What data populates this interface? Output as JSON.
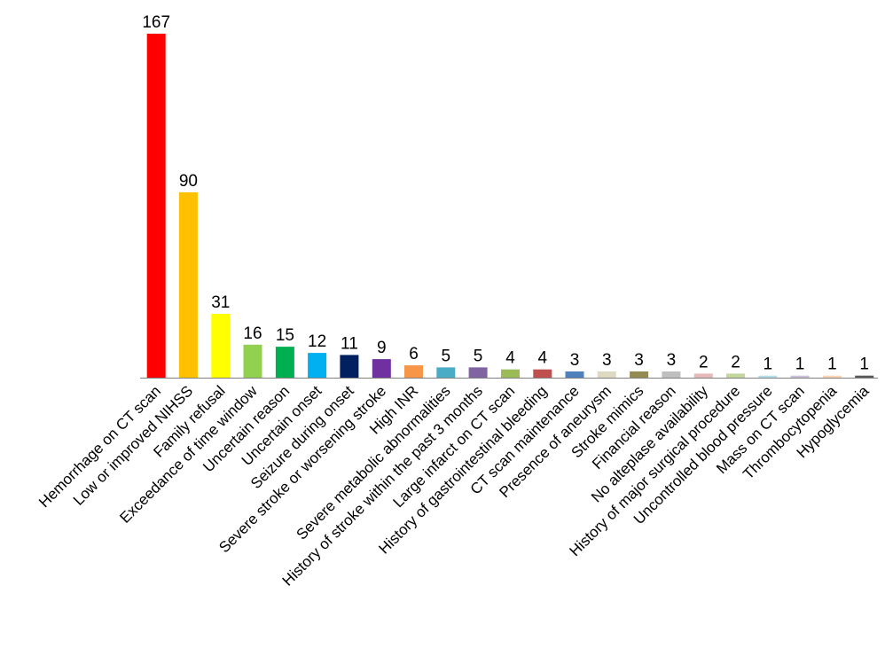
{
  "chart_data": {
    "type": "bar",
    "title": "",
    "xlabel": "",
    "ylabel": "",
    "ylim": [
      0,
      167
    ],
    "grid": false,
    "legend": "none",
    "categories": [
      "Hemorrhage on CT scan",
      "Low or improved NIHSS",
      "Family refusal",
      "Exceedance of time window",
      "Uncertain reason",
      "Uncertain onset",
      "Seizure during onset",
      "Severe stroke or worsening stroke",
      "High INR",
      "Severe metabolic abnormalities",
      "History of stroke within the past 3 months",
      "Large infarct on CT scan",
      "History of gastrointestinal bleeding",
      "CT scan maintenance",
      "Presence of aneurysm",
      "Stroke mimics",
      "Financial reason",
      "No alteplase availability",
      "History of major surgical procedure",
      "Uncontrolled blood pressure",
      "Mass on CT scan",
      "Thrombocytopenia",
      "Hypoglycemia"
    ],
    "values": [
      167,
      90,
      31,
      16,
      15,
      12,
      11,
      9,
      6,
      5,
      5,
      4,
      4,
      3,
      3,
      3,
      3,
      2,
      2,
      1,
      1,
      1,
      1
    ],
    "data_labels": [
      "167",
      "90",
      "31",
      "16",
      "15",
      "12",
      "11",
      "9",
      "6",
      "5",
      "5",
      "4",
      "4",
      "3",
      "3",
      "3",
      "3",
      "2",
      "2",
      "1",
      "1",
      "1",
      "1"
    ],
    "colors": [
      "#ff0000",
      "#ffc000",
      "#ffff00",
      "#92d050",
      "#00b050",
      "#00b0f0",
      "#002060",
      "#7030a0",
      "#f79646",
      "#4bacc6",
      "#8064a2",
      "#9bbb59",
      "#c0504d",
      "#4f81bd",
      "#ddd9c3",
      "#948a54",
      "#bfbfbf",
      "#e6b9b8",
      "#c3d69b",
      "#b7dee8",
      "#ccc1da",
      "#fcd5b5",
      "#595959"
    ]
  }
}
